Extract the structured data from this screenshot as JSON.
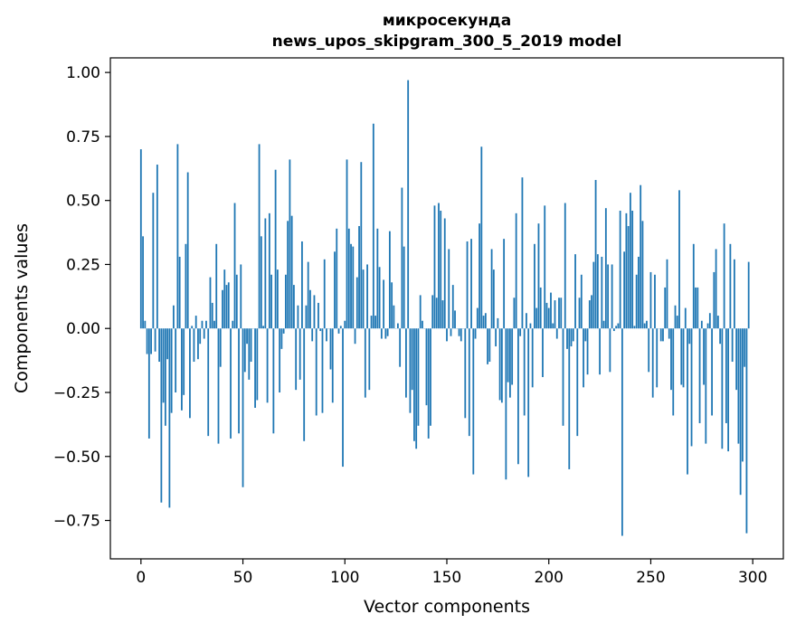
{
  "chart_data": {
    "type": "bar",
    "title": "микросекунда",
    "subtitle": "news_upos_skipgram_300_5_2019 model",
    "xlabel": "Vector components",
    "ylabel": "Components values",
    "xlim": [
      -15,
      315
    ],
    "ylim": [
      -0.9,
      1.057
    ],
    "xticks": [
      "0",
      "50",
      "100",
      "150",
      "200",
      "250",
      "300"
    ],
    "yticks": [
      "−0.75",
      "−0.50",
      "−0.25",
      "0.00",
      "0.25",
      "0.50",
      "0.75",
      "1.00"
    ],
    "grid": false,
    "color": "#1f77b4",
    "values": [
      0.7,
      0.36,
      0.03,
      -0.1,
      -0.43,
      -0.1,
      0.53,
      -0.09,
      0.64,
      -0.13,
      -0.68,
      -0.29,
      -0.38,
      -0.12,
      -0.7,
      -0.33,
      0.09,
      -0.25,
      0.72,
      0.28,
      -0.32,
      -0.26,
      0.33,
      0.61,
      -0.35,
      0.01,
      -0.13,
      0.05,
      -0.12,
      -0.06,
      0.03,
      -0.04,
      0.03,
      -0.42,
      0.2,
      0.1,
      0.03,
      0.33,
      -0.45,
      -0.15,
      0.15,
      0.23,
      0.17,
      0.18,
      -0.43,
      0.03,
      0.49,
      0.21,
      -0.41,
      0.25,
      -0.62,
      -0.17,
      -0.06,
      -0.2,
      -0.13,
      0.0,
      -0.31,
      -0.28,
      0.72,
      0.36,
      0.01,
      0.43,
      -0.29,
      0.45,
      0.21,
      -0.41,
      0.62,
      0.23,
      -0.25,
      -0.08,
      -0.02,
      0.21,
      0.42,
      0.66,
      0.44,
      0.17,
      -0.24,
      0.09,
      -0.2,
      0.34,
      -0.44,
      0.09,
      0.26,
      0.15,
      -0.05,
      0.13,
      -0.34,
      0.1,
      -0.01,
      -0.33,
      0.27,
      -0.05,
      0.0,
      -0.16,
      -0.29,
      0.3,
      0.39,
      -0.02,
      0.01,
      -0.54,
      0.03,
      0.66,
      0.39,
      0.33,
      0.32,
      -0.06,
      0.2,
      0.4,
      0.65,
      0.23,
      -0.27,
      0.25,
      -0.24,
      0.05,
      0.8,
      0.05,
      0.39,
      0.24,
      -0.04,
      0.19,
      -0.04,
      -0.03,
      0.38,
      0.18,
      0.09,
      0.0,
      0.02,
      -0.15,
      0.55,
      0.32,
      -0.27,
      0.97,
      -0.33,
      -0.24,
      -0.44,
      -0.47,
      -0.38,
      0.13,
      0.03,
      0.0,
      -0.3,
      -0.43,
      -0.38,
      0.13,
      0.48,
      0.12,
      0.49,
      0.46,
      0.11,
      0.43,
      -0.05,
      0.31,
      -0.03,
      0.17,
      0.07,
      0.0,
      -0.03,
      -0.05,
      0.0,
      -0.35,
      0.34,
      -0.42,
      0.35,
      -0.57,
      -0.04,
      0.08,
      0.41,
      0.71,
      0.05,
      0.06,
      -0.14,
      -0.13,
      0.31,
      0.23,
      -0.07,
      0.04,
      -0.28,
      -0.29,
      0.35,
      -0.59,
      -0.21,
      -0.27,
      -0.22,
      0.12,
      0.45,
      -0.53,
      -0.03,
      0.59,
      -0.34,
      0.06,
      -0.58,
      0.02,
      -0.23,
      0.33,
      0.08,
      0.41,
      0.16,
      -0.19,
      0.48,
      0.1,
      0.08,
      0.14,
      0.02,
      0.11,
      -0.04,
      0.12,
      0.12,
      -0.38,
      0.49,
      -0.08,
      -0.55,
      -0.07,
      -0.05,
      0.29,
      -0.42,
      0.12,
      0.21,
      -0.23,
      -0.05,
      -0.18,
      0.11,
      0.13,
      0.26,
      0.58,
      0.29,
      -0.18,
      0.28,
      0.03,
      0.47,
      0.25,
      -0.17,
      0.25,
      -0.01,
      0.01,
      0.02,
      0.46,
      -0.81,
      0.3,
      0.45,
      0.4,
      0.53,
      0.46,
      0.01,
      0.21,
      0.28,
      0.56,
      0.42,
      0.02,
      0.03,
      -0.17,
      0.22,
      -0.27,
      0.21,
      -0.23,
      0.0,
      -0.05,
      -0.05,
      0.16,
      0.27,
      -0.04,
      -0.24,
      -0.34,
      0.09,
      0.05,
      0.54,
      -0.22,
      -0.23,
      0.08,
      -0.57,
      -0.06,
      -0.46,
      0.33,
      0.16,
      0.16,
      -0.37,
      0.03,
      -0.22,
      -0.45,
      0.02,
      0.06,
      -0.34,
      0.22,
      0.31,
      0.05,
      -0.06,
      -0.47,
      0.41,
      -0.37,
      -0.48,
      0.33,
      -0.13,
      0.27,
      -0.24,
      -0.45,
      -0.65,
      -0.52,
      -0.15,
      -0.8,
      0.26
    ]
  }
}
